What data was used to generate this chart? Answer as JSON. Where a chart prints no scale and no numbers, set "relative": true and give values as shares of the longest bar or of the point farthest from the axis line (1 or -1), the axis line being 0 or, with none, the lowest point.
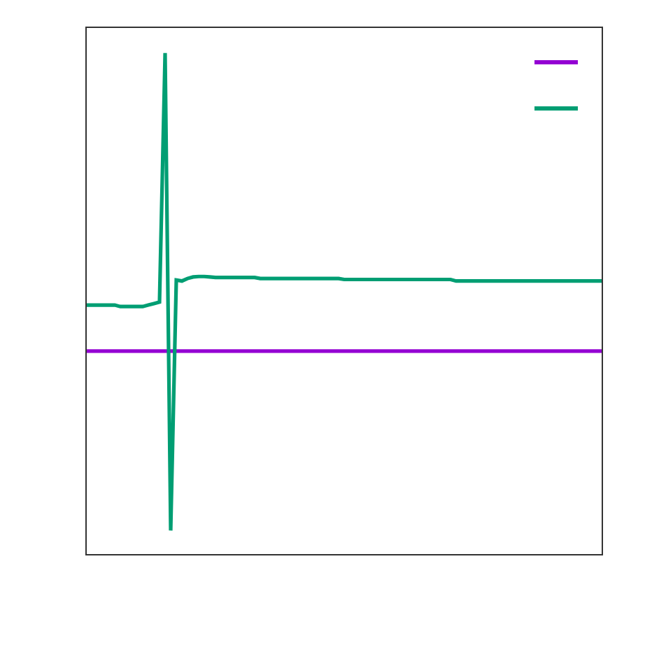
{
  "chart_data": {
    "type": "line",
    "relative": true,
    "grid": false,
    "marker": "none",
    "line_style": "solid",
    "categories": [
      null,
      null,
      null,
      null,
      null,
      null,
      null,
      null,
      null,
      null,
      null,
      null,
      null,
      null,
      null,
      null,
      null,
      null,
      null,
      null,
      null,
      null,
      null,
      null,
      null,
      null,
      null,
      null,
      null,
      null,
      null,
      null,
      null,
      null,
      null,
      null,
      null,
      null,
      null,
      null,
      null,
      null,
      null,
      null,
      null,
      null,
      null,
      null,
      null,
      null,
      null,
      null,
      null,
      null,
      null,
      null,
      null,
      null,
      null,
      null,
      null,
      null,
      null,
      null,
      null,
      null,
      null,
      null,
      null,
      null,
      null,
      null,
      null,
      null,
      null,
      null,
      null,
      null,
      null,
      null,
      null,
      null,
      null,
      null,
      null,
      null,
      null,
      null,
      null,
      null,
      null,
      null,
      null
    ],
    "series": [
      {
        "color": "#9400d3",
        "values": [
          0.405,
          0.405,
          0.405,
          0.405,
          0.405,
          0.405,
          0.405,
          0.405,
          0.405,
          0.405,
          0.405,
          0.405,
          0.405,
          0.405,
          0.405,
          0.405,
          0.405,
          0.405,
          0.405,
          0.405,
          0.405,
          0.405,
          0.405,
          0.405,
          0.405,
          0.405,
          0.405,
          0.405,
          0.405,
          0.405,
          0.405,
          0.405,
          0.405,
          0.405,
          0.405,
          0.405,
          0.405,
          0.405,
          0.405,
          0.405,
          0.405,
          0.405,
          0.405,
          0.405,
          0.405,
          0.405,
          0.405,
          0.405,
          0.405,
          0.405,
          0.405,
          0.405,
          0.405,
          0.405,
          0.405,
          0.405,
          0.405,
          0.405,
          0.405,
          0.405,
          0.405,
          0.405,
          0.405,
          0.405,
          0.405,
          0.405,
          0.405,
          0.405,
          0.405,
          0.405,
          0.405,
          0.405,
          0.405,
          0.405,
          0.405,
          0.405,
          0.405,
          0.405,
          0.405,
          0.405,
          0.405,
          0.405,
          0.405,
          0.405,
          0.405,
          0.405,
          0.405,
          0.405,
          0.405,
          0.405,
          0.405,
          0.405,
          0.405
        ]
      },
      {
        "color": "#009e73",
        "values": [
          0.497,
          0.497,
          0.497,
          0.497,
          0.497,
          0.497,
          0.494,
          0.494,
          0.494,
          0.494,
          0.494,
          0.497,
          0.5,
          0.503,
          1,
          0.047,
          0.547,
          0.545,
          0.55,
          0.553,
          0.554,
          0.554,
          0.553,
          0.552,
          0.552,
          0.552,
          0.552,
          0.552,
          0.552,
          0.552,
          0.552,
          0.55,
          0.55,
          0.55,
          0.55,
          0.55,
          0.55,
          0.55,
          0.55,
          0.55,
          0.55,
          0.55,
          0.55,
          0.55,
          0.55,
          0.55,
          0.548,
          0.548,
          0.548,
          0.548,
          0.548,
          0.548,
          0.548,
          0.548,
          0.548,
          0.548,
          0.548,
          0.548,
          0.548,
          0.548,
          0.548,
          0.548,
          0.548,
          0.548,
          0.548,
          0.548,
          0.545,
          0.545,
          0.545,
          0.545,
          0.545,
          0.545,
          0.545,
          0.545,
          0.545,
          0.545,
          0.545,
          0.545,
          0.545,
          0.545,
          0.545,
          0.545,
          0.545,
          0.545,
          0.545,
          0.545,
          0.545,
          0.545,
          0.545,
          0.545,
          0.545,
          0.545,
          0.545
        ]
      }
    ]
  }
}
